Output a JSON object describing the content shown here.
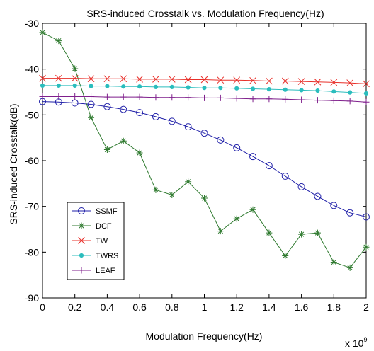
{
  "chart_data": {
    "type": "line",
    "title": "SRS-induced Crosstalk vs. Modulation Frequency(Hz)",
    "xlabel": "Modulation Frequency(Hz)",
    "ylabel": "SRS-induced Crosstalk(dB)",
    "x_multiplier_label": "x 10",
    "x_multiplier_exponent": "9",
    "xlim": [
      0,
      2
    ],
    "ylim": [
      -90,
      -30
    ],
    "x_ticks": [
      0,
      0.2,
      0.4,
      0.6,
      0.8,
      1,
      1.2,
      1.4,
      1.6,
      1.8,
      2
    ],
    "x_tick_labels": [
      "0",
      "0.2",
      "0.4",
      "0.6",
      "0.8",
      "1",
      "1.2",
      "1.4",
      "1.6",
      "1.8",
      "2"
    ],
    "y_ticks": [
      -90,
      -80,
      -70,
      -60,
      -50,
      -40,
      -30
    ],
    "y_tick_labels": [
      "-90",
      "-80",
      "-70",
      "-60",
      "-50",
      "-40",
      "-30"
    ],
    "grid": false,
    "legend_position": "lower-left",
    "x": [
      0,
      0.1,
      0.2,
      0.3,
      0.4,
      0.5,
      0.6,
      0.7,
      0.8,
      0.9,
      1.0,
      1.1,
      1.2,
      1.3,
      1.4,
      1.5,
      1.6,
      1.7,
      1.8,
      1.9,
      2.0
    ],
    "series": [
      {
        "name": "SSMF",
        "color": "#1f1fa8",
        "marker": "circle",
        "values": [
          -47.1,
          -47.2,
          -47.4,
          -47.7,
          -48.2,
          -48.8,
          -49.5,
          -50.4,
          -51.4,
          -52.6,
          -54.0,
          -55.5,
          -57.2,
          -59.1,
          -61.1,
          -63.4,
          -65.7,
          -67.8,
          -69.8,
          -71.4,
          -72.3
        ]
      },
      {
        "name": "DCF",
        "color": "#2f7a2f",
        "marker": "asterisk",
        "values": [
          -32.0,
          -33.8,
          -39.9,
          -50.6,
          -57.6,
          -55.7,
          -58.3,
          -66.4,
          -67.5,
          -64.6,
          -68.2,
          -75.4,
          -72.7,
          -70.7,
          -75.8,
          -80.8,
          -76.1,
          -75.8,
          -82.2,
          -83.4,
          -78.9
        ]
      },
      {
        "name": "TW",
        "color": "#e8302a",
        "marker": "x",
        "values": [
          -42.0,
          -42.0,
          -42.0,
          -42.1,
          -42.1,
          -42.1,
          -42.2,
          -42.2,
          -42.2,
          -42.3,
          -42.3,
          -42.4,
          -42.4,
          -42.5,
          -42.6,
          -42.6,
          -42.7,
          -42.8,
          -42.9,
          -43.0,
          -43.2
        ]
      },
      {
        "name": "TWRS",
        "color": "#2bbdbd",
        "marker": "dot",
        "values": [
          -43.6,
          -43.6,
          -43.6,
          -43.7,
          -43.7,
          -43.8,
          -43.8,
          -43.9,
          -43.9,
          -44.0,
          -44.1,
          -44.1,
          -44.2,
          -44.3,
          -44.4,
          -44.5,
          -44.6,
          -44.7,
          -44.9,
          -45.1,
          -45.3
        ]
      },
      {
        "name": "LEAF",
        "color": "#7f1f8c",
        "marker": "plus",
        "values": [
          -46.0,
          -46.0,
          -46.0,
          -46.0,
          -46.1,
          -46.1,
          -46.1,
          -46.2,
          -46.2,
          -46.2,
          -46.3,
          -46.3,
          -46.4,
          -46.5,
          -46.5,
          -46.6,
          -46.7,
          -46.8,
          -46.9,
          -47.0,
          -47.2
        ]
      }
    ]
  }
}
